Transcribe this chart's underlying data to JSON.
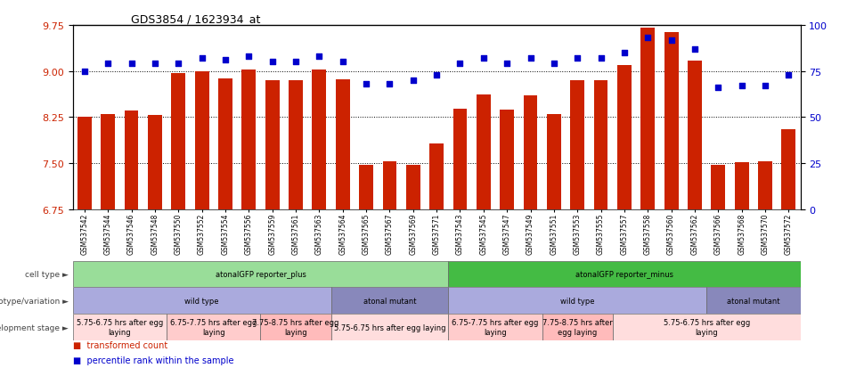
{
  "title": "GDS3854 / 1623934_at",
  "samples": [
    "GSM537542",
    "GSM537544",
    "GSM537546",
    "GSM537548",
    "GSM537550",
    "GSM537552",
    "GSM537554",
    "GSM537556",
    "GSM537559",
    "GSM537561",
    "GSM537563",
    "GSM537564",
    "GSM537565",
    "GSM537567",
    "GSM537569",
    "GSM537571",
    "GSM537543",
    "GSM537545",
    "GSM537547",
    "GSM537549",
    "GSM537551",
    "GSM537553",
    "GSM537555",
    "GSM537557",
    "GSM537558",
    "GSM537560",
    "GSM537562",
    "GSM537566",
    "GSM537568",
    "GSM537570",
    "GSM537572"
  ],
  "bar_values": [
    8.25,
    8.3,
    8.35,
    8.28,
    8.97,
    9.0,
    8.88,
    9.03,
    8.85,
    8.85,
    9.02,
    8.87,
    7.47,
    7.53,
    7.47,
    7.82,
    8.38,
    8.62,
    8.37,
    8.6,
    8.3,
    8.85,
    8.85,
    9.1,
    9.7,
    9.63,
    9.17,
    7.47,
    7.52,
    7.53,
    8.05
  ],
  "percentile_values": [
    75,
    79,
    79,
    79,
    79,
    82,
    81,
    83,
    80,
    80,
    83,
    80,
    68,
    68,
    70,
    73,
    79,
    82,
    79,
    82,
    79,
    82,
    82,
    85,
    93,
    92,
    87,
    66,
    67,
    67,
    73
  ],
  "ylim_left": [
    6.75,
    9.75
  ],
  "ylim_right": [
    0,
    100
  ],
  "yticks_left": [
    6.75,
    7.5,
    8.25,
    9.0,
    9.75
  ],
  "yticks_right": [
    0,
    25,
    50,
    75,
    100
  ],
  "bar_color": "#CC2200",
  "dot_color": "#0000CC",
  "background_color": "#ffffff",
  "xticklabel_bg": "#DDDDDD",
  "cell_type_row": {
    "label": "cell type",
    "segments": [
      {
        "text": "atonalGFP reporter_plus",
        "start": 0,
        "end": 16,
        "color": "#99DD99"
      },
      {
        "text": "atonalGFP reporter_minus",
        "start": 16,
        "end": 31,
        "color": "#44BB44"
      }
    ]
  },
  "genotype_row": {
    "label": "genotype/variation",
    "segments": [
      {
        "text": "wild type",
        "start": 0,
        "end": 11,
        "color": "#AAAADD"
      },
      {
        "text": "atonal mutant",
        "start": 11,
        "end": 16,
        "color": "#8888BB"
      },
      {
        "text": "wild type",
        "start": 16,
        "end": 27,
        "color": "#AAAADD"
      },
      {
        "text": "atonal mutant",
        "start": 27,
        "end": 31,
        "color": "#8888BB"
      }
    ]
  },
  "dev_stage_row": {
    "label": "development stage",
    "segments": [
      {
        "text": "5.75-6.75 hrs after egg\nlaying",
        "start": 0,
        "end": 4,
        "color": "#FFDDDD"
      },
      {
        "text": "6.75-7.75 hrs after egg\nlaying",
        "start": 4,
        "end": 8,
        "color": "#FFCCCC"
      },
      {
        "text": "7.75-8.75 hrs after egg\nlaying",
        "start": 8,
        "end": 11,
        "color": "#FFBBBB"
      },
      {
        "text": "5.75-6.75 hrs after egg laying",
        "start": 11,
        "end": 16,
        "color": "#FFDDDD"
      },
      {
        "text": "6.75-7.75 hrs after egg\nlaying",
        "start": 16,
        "end": 20,
        "color": "#FFCCCC"
      },
      {
        "text": "7.75-8.75 hrs after\negg laying",
        "start": 20,
        "end": 23,
        "color": "#FFBBBB"
      },
      {
        "text": "5.75-6.75 hrs after egg\nlaying",
        "start": 23,
        "end": 31,
        "color": "#FFDDDD"
      }
    ]
  },
  "legend": [
    {
      "color": "#CC2200",
      "label": "transformed count"
    },
    {
      "color": "#0000CC",
      "label": "percentile rank within the sample"
    }
  ]
}
